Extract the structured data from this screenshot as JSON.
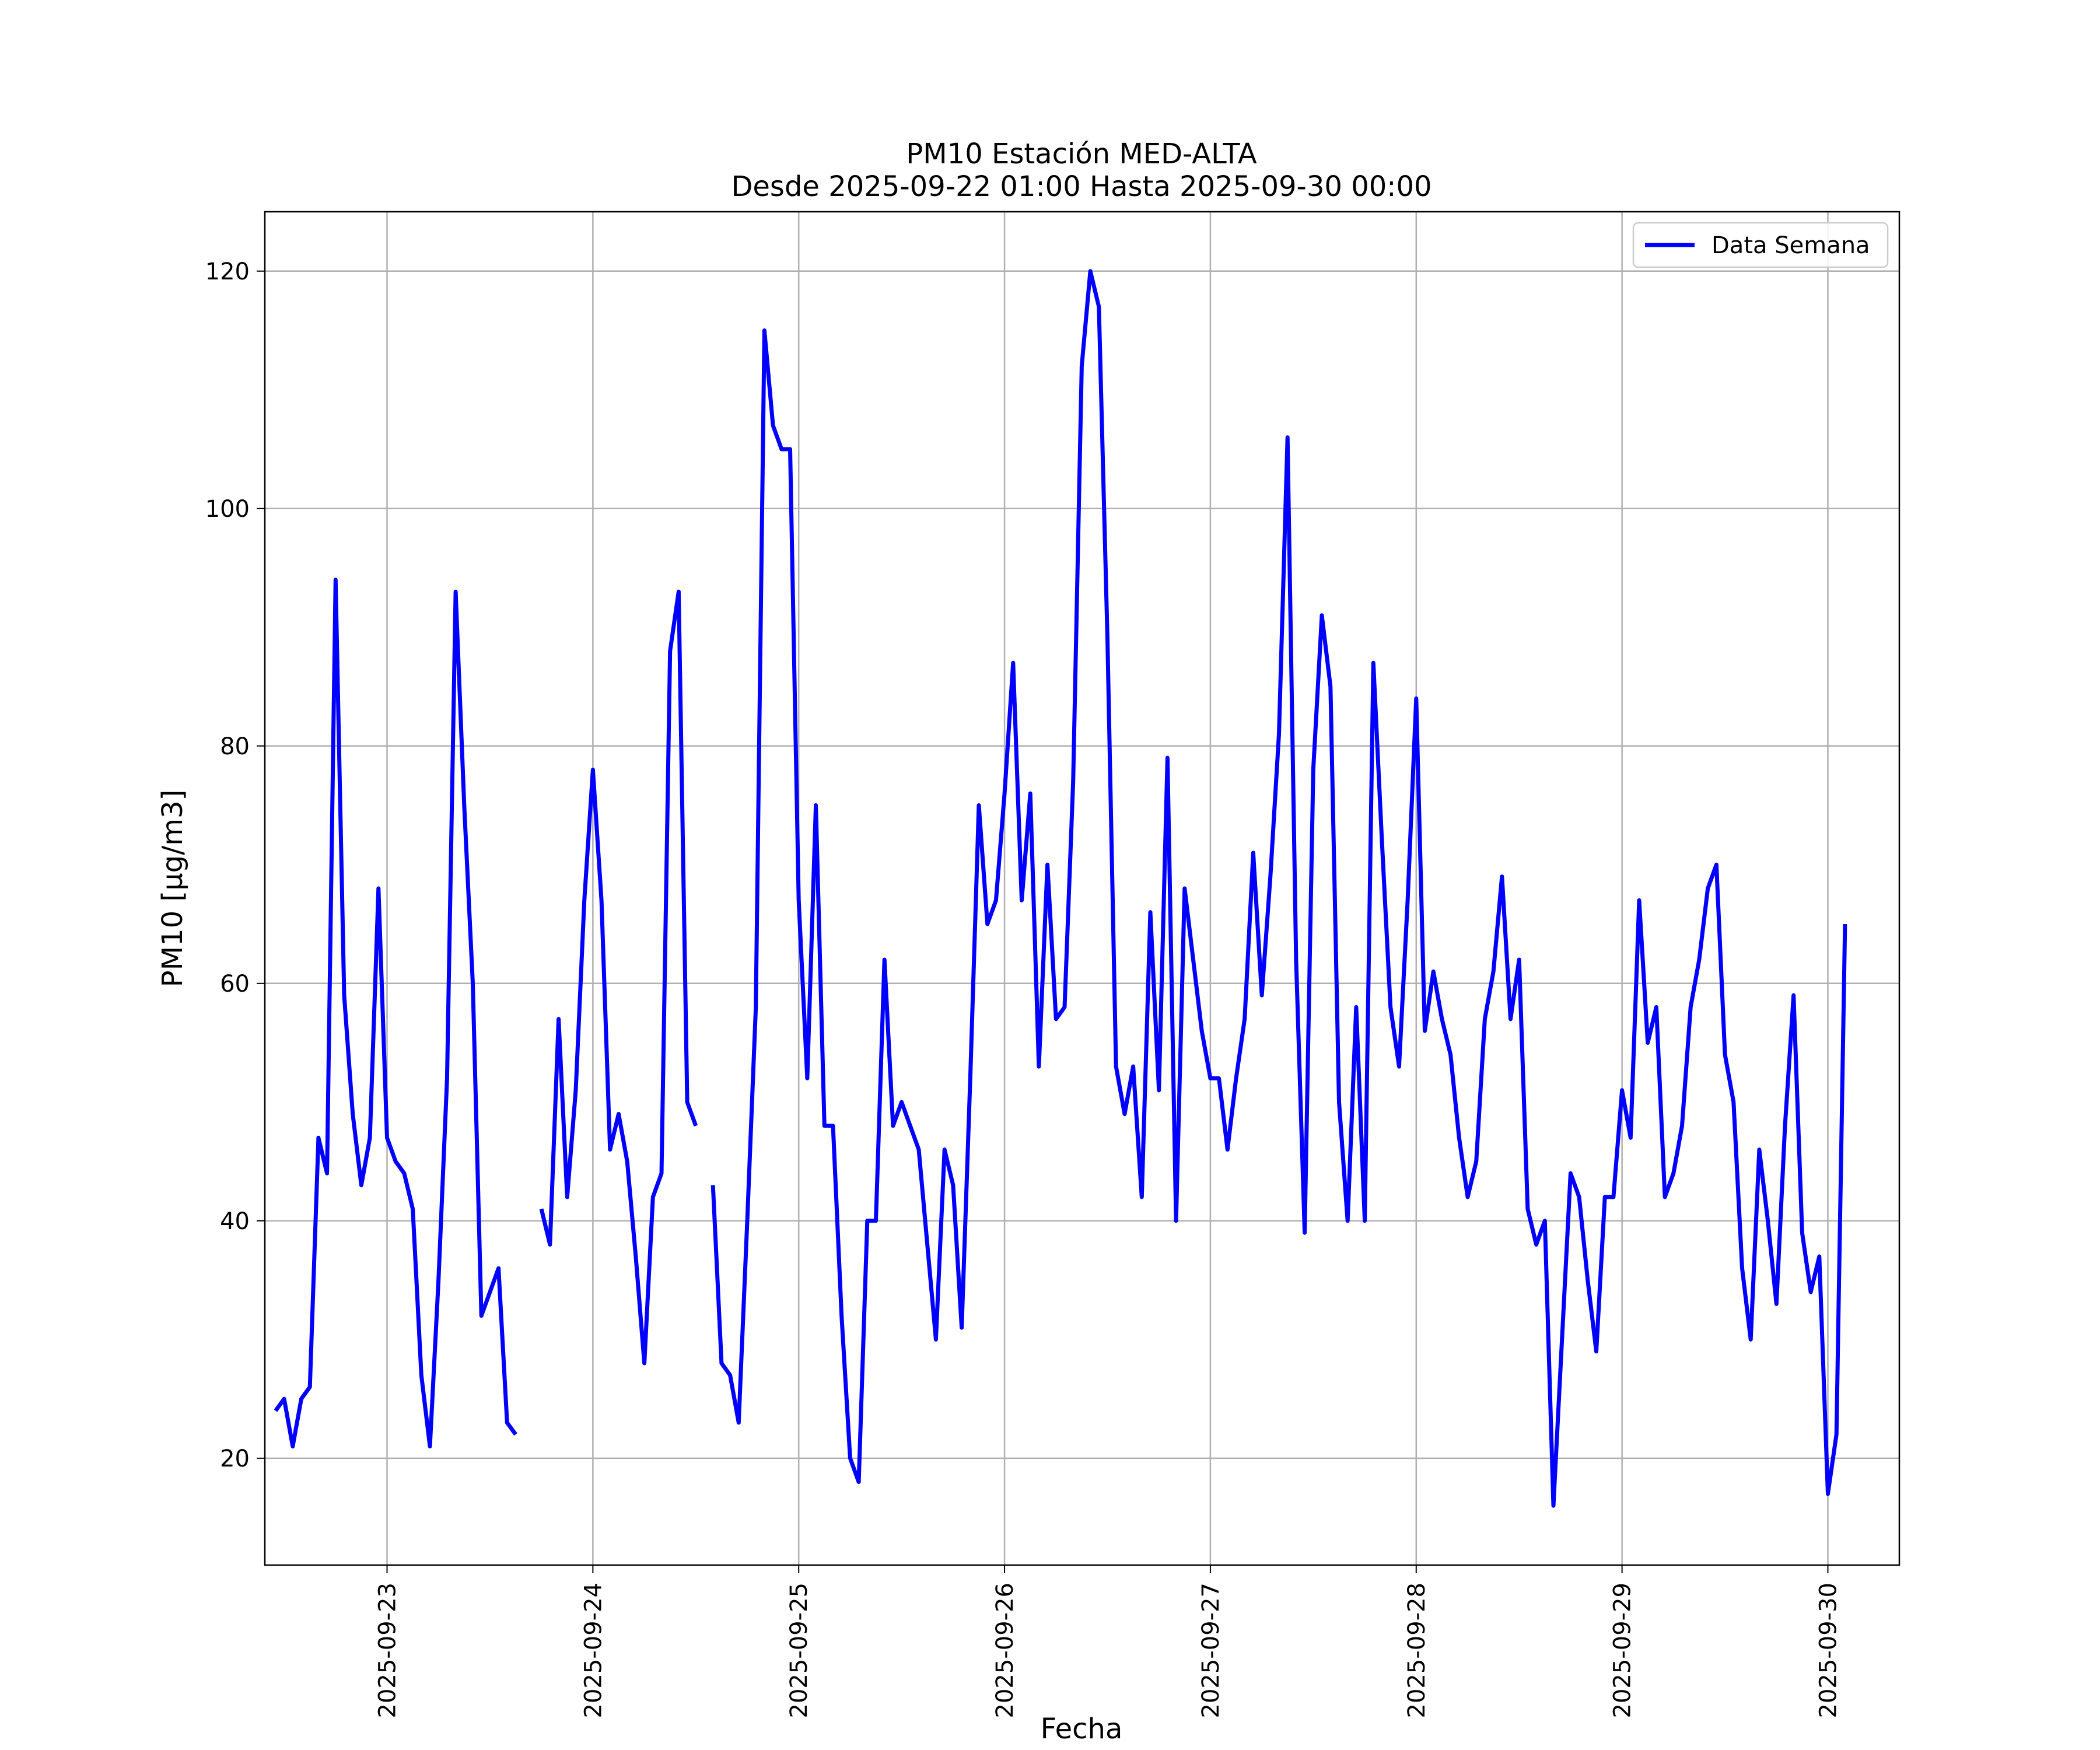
{
  "chart_data": {
    "type": "line",
    "title": "PM10 Estación MED-ALTA",
    "subtitle": "Desde 2025-09-22 01:00 Hasta 2025-09-30 00:00",
    "xlabel": "Fecha",
    "ylabel": "PM10 [μg/m3]",
    "xlim": [
      "2025-09-22 09:45",
      "2025-09-30 08:20"
    ],
    "ylim": [
      11,
      125
    ],
    "x_ticks": [
      "2025-09-23",
      "2025-09-24",
      "2025-09-25",
      "2025-09-26",
      "2025-09-27",
      "2025-09-28",
      "2025-09-29",
      "2025-09-30"
    ],
    "y_ticks": [
      20,
      40,
      60,
      80,
      100,
      120
    ],
    "grid": true,
    "legend": {
      "position": "top-right",
      "entries": [
        "Data Semana"
      ]
    },
    "colors": {
      "series": "#0000ff"
    },
    "series": [
      {
        "name": "Data Semana",
        "x_start": "2025-09-22 11:00",
        "x_step": "1 hour",
        "values": [
          24,
          25,
          21,
          25,
          26,
          47,
          44,
          94,
          59,
          49,
          43,
          47,
          68,
          47,
          45,
          44,
          41,
          27,
          21,
          35,
          52,
          93,
          75,
          60,
          32,
          34,
          36,
          23,
          22,
          null,
          null,
          41,
          38,
          57,
          42,
          51,
          67,
          78,
          67,
          46,
          49,
          45,
          37,
          28,
          42,
          44,
          88,
          93,
          50,
          48,
          null,
          43,
          28,
          27,
          23,
          40,
          58,
          115,
          107,
          105,
          105,
          67,
          52,
          75,
          48,
          48,
          32,
          20,
          18,
          40,
          40,
          62,
          48,
          50,
          48,
          46,
          38,
          30,
          46,
          43,
          31,
          52,
          75,
          65,
          67,
          76,
          87,
          67,
          76,
          53,
          70,
          57,
          58,
          77,
          112,
          120,
          117,
          89,
          53,
          49,
          53,
          42,
          66,
          51,
          79,
          40,
          68,
          62,
          56,
          52,
          52,
          46,
          52,
          57,
          71,
          59,
          69,
          81,
          106,
          62,
          39,
          78,
          91,
          85,
          50,
          40,
          58,
          40,
          87,
          72,
          58,
          53,
          67,
          84,
          56,
          61,
          57,
          54,
          47,
          42,
          45,
          57,
          61,
          69,
          57,
          62,
          41,
          38,
          40,
          16,
          30,
          44,
          42,
          35,
          29,
          42,
          42,
          51,
          47,
          67,
          55,
          58,
          42,
          44,
          48,
          58,
          62,
          68,
          70,
          54,
          50,
          36,
          30,
          46,
          40,
          33,
          48,
          59,
          39,
          34,
          37,
          17,
          22,
          65
        ]
      }
    ]
  }
}
